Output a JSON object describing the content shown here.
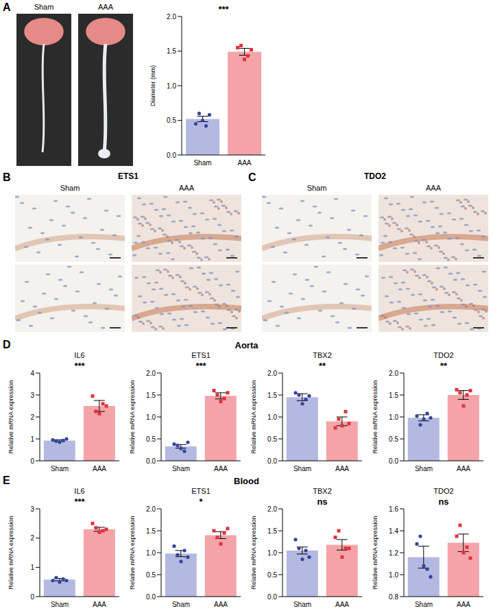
{
  "panel_letters": [
    "A",
    "B",
    "C",
    "D",
    "E"
  ],
  "image_panels": [
    {
      "labels": [
        "Sham",
        "AAA"
      ]
    },
    {
      "title": "ETS1",
      "labels": [
        "Sham",
        "AAA"
      ]
    },
    {
      "title": "TDO2",
      "labels": [
        "Sham",
        "AAA"
      ]
    }
  ],
  "chart_data": [
    {
      "type": "bar",
      "ylabel": "Diameter (mm)",
      "categories": [
        "Sham",
        "AAA"
      ],
      "values": [
        0.52,
        1.49
      ],
      "errors": [
        0.04,
        0.05
      ],
      "points": [
        [
          0.45,
          0.6,
          0.5,
          0.42,
          0.58
        ],
        [
          1.55,
          1.58,
          1.38,
          1.43,
          1.52
        ]
      ],
      "colors": [
        "#b4b9e2",
        "#f4a4a8"
      ],
      "ylim": [
        0,
        2
      ],
      "yticks": [
        {
          "value": 0,
          "label": "0.0"
        },
        {
          "value": 0.5,
          "label": "0.5"
        },
        {
          "value": 1,
          "label": "1.0"
        },
        {
          "value": 1.5,
          "label": "1.5"
        },
        {
          "value": 2,
          "label": "2.0"
        }
      ],
      "annotations": [
        "***"
      ]
    },
    {
      "type": "bar",
      "group": "Aorta",
      "title": "IL6",
      "ylabel": "Relative mRNA expression",
      "categories": [
        "Sham",
        "AAA"
      ],
      "values": [
        0.92,
        2.5
      ],
      "errors": [
        0.04,
        0.25
      ],
      "points": [
        [
          0.95,
          0.9,
          0.85,
          0.93,
          1.0
        ],
        [
          2.95,
          2.25,
          2.15,
          2.6,
          2.5
        ]
      ],
      "colors": [
        "#b4b9e2",
        "#f4a4a8"
      ],
      "ylim": [
        0,
        4
      ],
      "yticks": [
        0,
        1,
        2,
        3,
        4
      ],
      "annotations": [
        "***"
      ]
    },
    {
      "type": "bar",
      "group": "Aorta",
      "title": "ETS1",
      "ylabel": "Relative mRNA expression",
      "categories": [
        "Sham",
        "AAA"
      ],
      "values": [
        0.33,
        1.48
      ],
      "errors": [
        0.04,
        0.07
      ],
      "points": [
        [
          0.38,
          0.35,
          0.28,
          0.22,
          0.42
        ],
        [
          1.6,
          1.5,
          1.35,
          1.42,
          1.55
        ]
      ],
      "colors": [
        "#b4b9e2",
        "#f4a4a8"
      ],
      "ylim": [
        0,
        2
      ],
      "yticks": [
        {
          "value": 0,
          "label": "0.0"
        },
        {
          "value": 0.5,
          "label": "0.5"
        },
        {
          "value": 1,
          "label": "1.0"
        },
        {
          "value": 1.5,
          "label": "1.5"
        },
        {
          "value": 2,
          "label": "2.0"
        }
      ],
      "annotations": [
        "***"
      ]
    },
    {
      "type": "bar",
      "group": "Aorta",
      "title": "TBX2",
      "ylabel": "Relative mRNA expression",
      "categories": [
        "Sham",
        "AAA"
      ],
      "values": [
        1.45,
        0.9
      ],
      "errors": [
        0.08,
        0.1
      ],
      "points": [
        [
          1.55,
          1.5,
          1.3,
          1.4,
          1.48
        ],
        [
          0.75,
          0.95,
          0.8,
          1.12,
          0.85
        ]
      ],
      "colors": [
        "#b4b9e2",
        "#f4a4a8"
      ],
      "ylim": [
        0,
        2
      ],
      "yticks": [
        {
          "value": 0,
          "label": "0.0"
        },
        {
          "value": 0.5,
          "label": "0.5"
        },
        {
          "value": 1,
          "label": "1.0"
        },
        {
          "value": 1.5,
          "label": "1.5"
        },
        {
          "value": 2,
          "label": "2.0"
        }
      ],
      "annotations": [
        "**"
      ]
    },
    {
      "type": "bar",
      "group": "Aorta",
      "title": "TDO2",
      "ylabel": "Relative mRNA expression",
      "categories": [
        "Sham",
        "AAA"
      ],
      "values": [
        0.98,
        1.5
      ],
      "errors": [
        0.07,
        0.1
      ],
      "points": [
        [
          1.02,
          0.82,
          0.95,
          1.08,
          0.98
        ],
        [
          1.62,
          1.55,
          1.25,
          1.5,
          1.6
        ]
      ],
      "colors": [
        "#b4b9e2",
        "#f4a4a8"
      ],
      "ylim": [
        0,
        2
      ],
      "yticks": [
        {
          "value": 0,
          "label": "0.0"
        },
        {
          "value": 0.5,
          "label": "0.5"
        },
        {
          "value": 1,
          "label": "1.0"
        },
        {
          "value": 1.5,
          "label": "1.5"
        },
        {
          "value": 2,
          "label": "2.0"
        }
      ],
      "annotations": [
        "**"
      ]
    },
    {
      "type": "bar",
      "group": "Blood",
      "title": "IL6",
      "ylabel": "Relative mRNA expression",
      "categories": [
        "Sham",
        "AAA"
      ],
      "values": [
        0.58,
        2.3
      ],
      "errors": [
        0.04,
        0.07
      ],
      "points": [
        [
          0.55,
          0.65,
          0.5,
          0.6,
          0.55
        ],
        [
          2.5,
          2.35,
          2.2,
          2.25,
          2.3
        ]
      ],
      "colors": [
        "#b4b9e2",
        "#f4a4a8"
      ],
      "ylim": [
        0,
        3
      ],
      "yticks": [
        0,
        1,
        2,
        3
      ],
      "annotations": [
        "***"
      ]
    },
    {
      "type": "bar",
      "group": "Blood",
      "title": "ETS1",
      "ylabel": "Relative mRNA expression",
      "categories": [
        "Sham",
        "AAA"
      ],
      "values": [
        0.98,
        1.4
      ],
      "errors": [
        0.07,
        0.08
      ],
      "points": [
        [
          1.15,
          0.95,
          0.8,
          1.05,
          0.9
        ],
        [
          1.5,
          1.35,
          1.2,
          1.45,
          1.55
        ]
      ],
      "colors": [
        "#b4b9e2",
        "#f4a4a8"
      ],
      "ylim": [
        0,
        2
      ],
      "yticks": [
        {
          "value": 0,
          "label": "0.0"
        },
        {
          "value": 0.5,
          "label": "0.5"
        },
        {
          "value": 1,
          "label": "1.0"
        },
        {
          "value": 1.5,
          "label": "1.5"
        },
        {
          "value": 2,
          "label": "2.0"
        }
      ],
      "annotations": [
        "*"
      ]
    },
    {
      "type": "bar",
      "group": "Blood",
      "title": "TBX2",
      "ylabel": "Relative mRNA expression",
      "categories": [
        "Sham",
        "AAA"
      ],
      "values": [
        1.05,
        1.18
      ],
      "errors": [
        0.08,
        0.12
      ],
      "points": [
        [
          1.3,
          1.1,
          0.85,
          1.05,
          0.9
        ],
        [
          1.35,
          1.5,
          0.9,
          1.1,
          1.1
        ]
      ],
      "colors": [
        "#b4b9e2",
        "#f4a4a8"
      ],
      "ylim": [
        0,
        2
      ],
      "yticks": [
        {
          "value": 0,
          "label": "0.0"
        },
        {
          "value": 0.5,
          "label": "0.5"
        },
        {
          "value": 1,
          "label": "1.0"
        },
        {
          "value": 1.5,
          "label": "1.5"
        },
        {
          "value": 2,
          "label": "2.0"
        }
      ],
      "annotations": [
        "ns"
      ]
    },
    {
      "type": "bar",
      "group": "Blood",
      "title": "TDO2",
      "ylabel": "Relative mRNA expression",
      "categories": [
        "Sham",
        "AAA"
      ],
      "values": [
        1.16,
        1.29
      ],
      "errors": [
        0.1,
        0.08
      ],
      "points": [
        [
          1.28,
          1.35,
          1.08,
          1.05,
          0.98
        ],
        [
          1.35,
          1.45,
          1.2,
          1.25,
          1.15
        ]
      ],
      "colors": [
        "#b4b9e2",
        "#f4a4a8"
      ],
      "ylim": [
        0.8,
        1.6
      ],
      "yticks": [
        {
          "value": 0.8,
          "label": "0.8"
        },
        {
          "value": 1,
          "label": "1.0"
        },
        {
          "value": 1.2,
          "label": "1.2"
        },
        {
          "value": 1.4,
          "label": "1.4"
        },
        {
          "value": 1.6,
          "label": "1.6"
        }
      ],
      "annotations": [
        "ns"
      ]
    }
  ]
}
